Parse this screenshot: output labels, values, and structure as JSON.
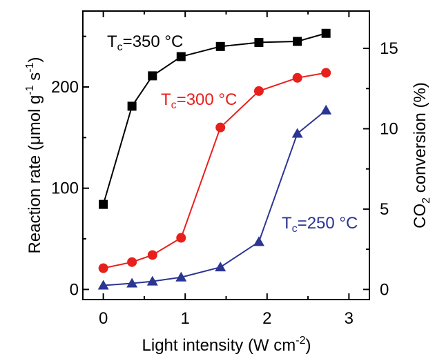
{
  "chart_data": {
    "type": "line",
    "xlabel": "Light intensity (W cm",
    "xlabel_sup": "-2",
    "xlabel_end": ")",
    "ylabel_left": "Reaction rate (μmol g",
    "ylabel_left_sup1": "-1",
    "ylabel_left_mid": " s",
    "ylabel_left_sup2": "-1",
    "ylabel_left_end": ")",
    "ylabel_right_pre": "CO",
    "ylabel_right_sub": "2",
    "ylabel_right_post": " conversion (%)",
    "xlim": [
      -0.25,
      3.25
    ],
    "ylim_left": [
      -10,
      275
    ],
    "ylim_right_per_left": 15.875,
    "xticks": [
      0,
      1,
      2,
      3
    ],
    "yticks_left": [
      0,
      100,
      200
    ],
    "yticks_right": [
      0,
      5,
      10,
      15
    ],
    "grid": false,
    "series": [
      {
        "name": "Tc=350 °C",
        "label_main": "T",
        "label_sub": "c",
        "label_rest": "=350 °C",
        "color": "#000000",
        "marker": "square",
        "x": [
          0,
          0.35,
          0.6,
          0.95,
          1.43,
          1.9,
          2.37,
          2.72
        ],
        "y": [
          84,
          181,
          211,
          230,
          240,
          244,
          245,
          253
        ]
      },
      {
        "name": "Tc=300 °C",
        "label_main": "T",
        "label_sub": "c",
        "label_rest": "=300 °C",
        "color": "#e8201c",
        "marker": "circle",
        "x": [
          0,
          0.35,
          0.6,
          0.95,
          1.43,
          1.9,
          2.37,
          2.72
        ],
        "y": [
          21,
          27,
          34,
          51,
          160,
          196,
          209,
          214
        ]
      },
      {
        "name": "Tc=250 °C",
        "label_main": "T",
        "label_sub": "c",
        "label_rest": "=250 °C",
        "color": "#2b3593",
        "marker": "triangle",
        "x": [
          0,
          0.35,
          0.6,
          0.95,
          1.43,
          1.9,
          2.37,
          2.72
        ],
        "y": [
          4,
          6,
          8,
          12,
          22,
          47,
          154,
          177
        ]
      }
    ]
  }
}
